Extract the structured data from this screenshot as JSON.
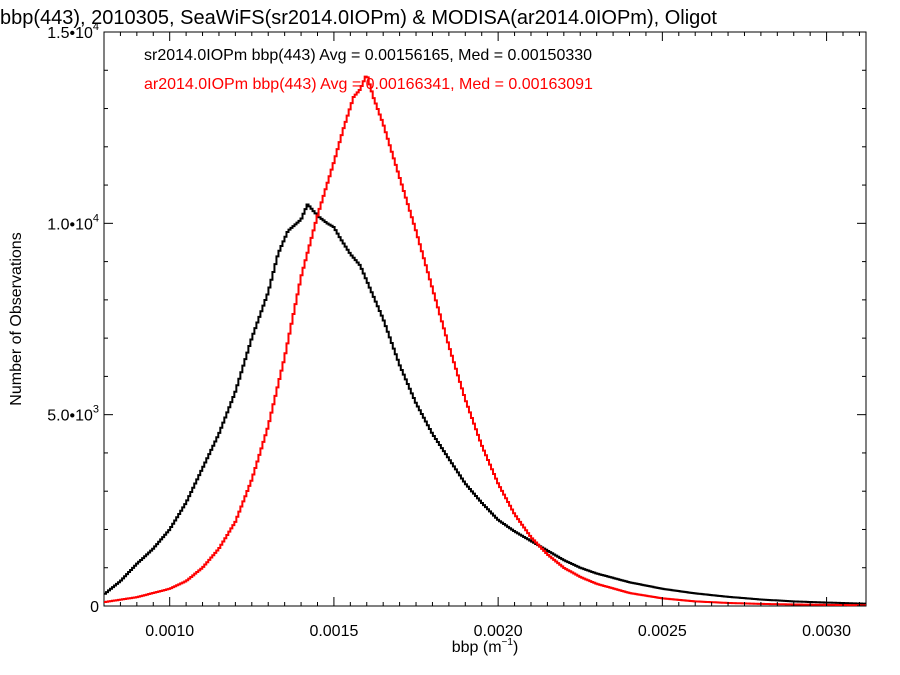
{
  "chart_data": {
    "type": "line",
    "title": "bbp(443), 2010305, SeaWiFS(sr2014.0IOPm) & MODISA(ar2014.0IOPm), Oligot",
    "xlabel_base": "bbp (m",
    "xlabel_sup": "−1",
    "xlabel_tail": ")",
    "ylabel": "Number of Observations",
    "xlim": [
      0.0008,
      0.00312
    ],
    "ylim": [
      0,
      15000
    ],
    "x_ticks": [
      {
        "value": 0.001,
        "label": "0.0010"
      },
      {
        "value": 0.0015,
        "label": "0.0015"
      },
      {
        "value": 0.002,
        "label": "0.0020"
      },
      {
        "value": 0.0025,
        "label": "0.0025"
      },
      {
        "value": 0.003,
        "label": "0.0030"
      }
    ],
    "y_ticks": [
      {
        "value": 0,
        "base": "0",
        "exp": ""
      },
      {
        "value": 5000,
        "base": "5.0•10",
        "exp": "3"
      },
      {
        "value": 10000,
        "base": "1.0•10",
        "exp": "4"
      },
      {
        "value": 15000,
        "base": "1.5•10",
        "exp": "4"
      }
    ],
    "grid": false,
    "legend_placement": "top-left (inside plot)",
    "series": [
      {
        "name": "sr2014.0IOPm bbp(443)",
        "legend_text": "sr2014.0IOPm bbp(443) Avg = 0.00156165, Med = 0.00150330",
        "color": "#000000",
        "x": [
          0.0008,
          0.00085,
          0.0009,
          0.00095,
          0.001,
          0.00105,
          0.0011,
          0.00115,
          0.0012,
          0.00125,
          0.0013,
          0.00133,
          0.00136,
          0.0014,
          0.00142,
          0.00145,
          0.00148,
          0.0015,
          0.00152,
          0.00155,
          0.00158,
          0.0016,
          0.00165,
          0.0017,
          0.00175,
          0.0018,
          0.00185,
          0.0019,
          0.00195,
          0.002,
          0.00205,
          0.0021,
          0.00215,
          0.0022,
          0.00225,
          0.0023,
          0.0024,
          0.0025,
          0.0026,
          0.0027,
          0.0028,
          0.0029,
          0.003,
          0.00312
        ],
        "values": [
          300,
          650,
          1100,
          1500,
          2000,
          2700,
          3600,
          4500,
          5600,
          7000,
          8200,
          9200,
          9800,
          10100,
          10500,
          10200,
          10000,
          9900,
          9600,
          9200,
          8900,
          8500,
          7500,
          6300,
          5300,
          4500,
          3850,
          3200,
          2700,
          2250,
          1950,
          1700,
          1450,
          1200,
          1000,
          850,
          620,
          450,
          330,
          240,
          170,
          120,
          90,
          60
        ]
      },
      {
        "name": "ar2014.0IOPm bbp(443)",
        "legend_text": "ar2014.0IOPm bbp(443) Avg = 0.00166341, Med = 0.00163091",
        "color": "#ff0000",
        "x": [
          0.0008,
          0.0009,
          0.001,
          0.00105,
          0.0011,
          0.00115,
          0.0012,
          0.00125,
          0.0013,
          0.00135,
          0.0014,
          0.00145,
          0.0015,
          0.00153,
          0.00156,
          0.00158,
          0.0016,
          0.00162,
          0.00165,
          0.0017,
          0.00175,
          0.0018,
          0.00185,
          0.0019,
          0.00195,
          0.002,
          0.00205,
          0.0021,
          0.00215,
          0.0022,
          0.00225,
          0.0023,
          0.0024,
          0.0025,
          0.0026,
          0.0027,
          0.0028,
          0.0029,
          0.003,
          0.00312
        ],
        "values": [
          100,
          230,
          450,
          650,
          1000,
          1500,
          2200,
          3300,
          4700,
          6500,
          8600,
          10200,
          11600,
          12500,
          13300,
          13500,
          13900,
          13300,
          12600,
          11200,
          9800,
          8300,
          6800,
          5400,
          4200,
          3200,
          2400,
          1800,
          1350,
          1000,
          760,
          580,
          340,
          200,
          120,
          80,
          55,
          40,
          30,
          20
        ]
      }
    ]
  }
}
